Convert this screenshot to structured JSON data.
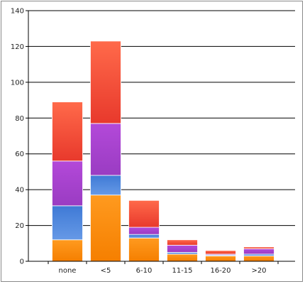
{
  "chart_data": {
    "type": "bar",
    "stacked": true,
    "categories": [
      "none",
      "<5",
      "6-10",
      "11-15",
      "16-20",
      ">20"
    ],
    "series": [
      {
        "values": [
          12,
          37,
          13,
          4,
          3,
          3
        ],
        "color": "#ff8c00"
      },
      {
        "values": [
          19,
          11,
          2,
          1,
          0.5,
          1
        ],
        "color": "#4f86d9"
      },
      {
        "values": [
          25,
          29,
          4,
          4,
          0.5,
          3
        ],
        "color": "#a744cf"
      },
      {
        "values": [
          33,
          46,
          15,
          3,
          2,
          1
        ],
        "color": "#f04a36"
      }
    ],
    "ylim": [
      0,
      140
    ],
    "yticks": [
      0,
      20,
      40,
      60,
      80,
      100,
      120,
      140
    ],
    "grid": true,
    "legend": false
  }
}
